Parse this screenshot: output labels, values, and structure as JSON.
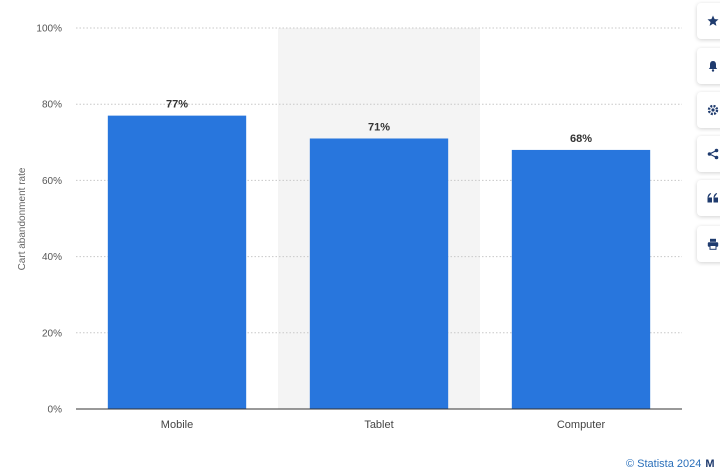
{
  "chart_data": {
    "type": "bar",
    "categories": [
      "Mobile",
      "Tablet",
      "Computer"
    ],
    "values": [
      77,
      71,
      68
    ],
    "value_labels": [
      "77%",
      "71%",
      "68%"
    ],
    "ylabel": "Cart abandonment rate",
    "ylim": [
      0,
      100
    ],
    "y_ticks": [
      0,
      20,
      40,
      60,
      80,
      100
    ],
    "y_tick_labels": [
      "0%",
      "20%",
      "40%",
      "60%",
      "80%",
      "100%"
    ],
    "grid": true,
    "highlighted_category": "Tablet",
    "bar_color": "#2876dd",
    "highlight_bg_color": "#f4f4f4"
  },
  "toolbar": {
    "items": [
      {
        "icon": "star-icon"
      },
      {
        "icon": "bell-icon"
      },
      {
        "icon": "gear-icon"
      },
      {
        "icon": "share-icon"
      },
      {
        "icon": "quote-icon"
      },
      {
        "icon": "print-icon"
      }
    ]
  },
  "credit": {
    "text": "© Statista 2024",
    "extra": "M"
  }
}
